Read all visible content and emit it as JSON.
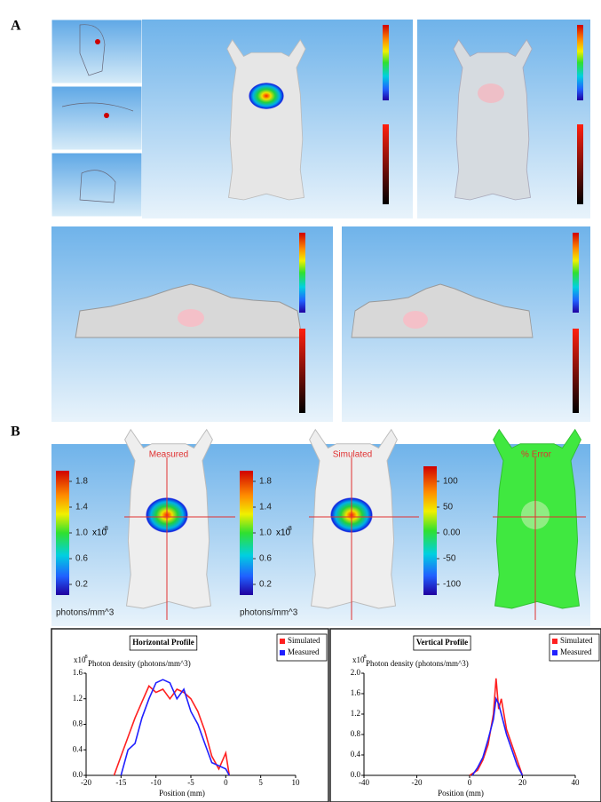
{
  "panel_labels": [
    "A",
    "B"
  ],
  "panel_b": {
    "titles": [
      "Measured",
      "Simulated",
      "% Error"
    ],
    "colorbars": [
      {
        "ticks": [
          "1.8",
          "1.4",
          "1.0",
          "0.6",
          "0.2"
        ],
        "scale": {
          "base": "x10",
          "exponent": "-8"
        },
        "unit": "photons/mm^3"
      },
      {
        "ticks": [
          "1.8",
          "1.4",
          "1.0",
          "0.6",
          "0.2"
        ],
        "scale": {
          "base": "x10",
          "exponent": "-8"
        },
        "unit": "photons/mm^3"
      },
      {
        "ticks": [
          "100",
          "50",
          "0.00",
          "-50",
          "-100"
        ]
      }
    ]
  },
  "chart_data": [
    {
      "type": "line",
      "title": "Horizontal Profile",
      "y_label": "Photon density (photons/mm^3)",
      "y_scale": {
        "base": "x10",
        "exponent": "-8"
      },
      "x_label": "Position (mm)",
      "xlim": [
        -20,
        10
      ],
      "xticks": [
        -20,
        -15,
        -10,
        -5,
        0,
        5,
        10
      ],
      "ylim": [
        0,
        1.6
      ],
      "yticks": [
        {
          "value": 0,
          "label": "0.0"
        },
        0.4,
        0.8,
        1.2,
        1.6
      ],
      "legend": "top-right",
      "series": [
        {
          "name": "Simulated",
          "color": "#ff2020",
          "x": [
            -16,
            -15,
            -14,
            -13,
            -12,
            -11,
            -10,
            -9,
            -8,
            -7,
            -6,
            -5,
            -4,
            -3,
            -2,
            -1,
            0,
            0.5
          ],
          "values": [
            0,
            0.3,
            0.6,
            0.9,
            1.15,
            1.4,
            1.3,
            1.35,
            1.2,
            1.35,
            1.3,
            1.2,
            1.0,
            0.7,
            0.3,
            0.1,
            0.35,
            0
          ]
        },
        {
          "name": "Measured",
          "color": "#2020ff",
          "x": [
            -15,
            -14,
            -13,
            -12,
            -11,
            -10,
            -9,
            -8,
            -7,
            -6,
            -5,
            -4,
            -3,
            -2,
            -1,
            0,
            0.5
          ],
          "values": [
            0,
            0.4,
            0.5,
            0.9,
            1.2,
            1.45,
            1.5,
            1.45,
            1.2,
            1.35,
            1.0,
            0.8,
            0.5,
            0.2,
            0.15,
            0.1,
            0
          ]
        }
      ]
    },
    {
      "type": "line",
      "title": "Vertical Profile",
      "y_label": "Photon density (photons/mm^3)",
      "y_scale": {
        "base": "x10",
        "exponent": "-8"
      },
      "x_label": "Position (mm)",
      "xlim": [
        -40,
        40
      ],
      "xticks": [
        -40,
        -20,
        0,
        20,
        40
      ],
      "ylim": [
        0,
        2
      ],
      "yticks": [
        {
          "value": 0,
          "label": "0.0"
        },
        0.4,
        0.8,
        1.2,
        1.6,
        {
          "value": 2,
          "label": "2.0"
        }
      ],
      "legend": "top-right",
      "series": [
        {
          "name": "Simulated",
          "color": "#ff2020",
          "x": [
            0,
            3,
            5,
            7,
            9,
            10,
            11,
            12,
            14,
            16,
            18,
            20
          ],
          "values": [
            0,
            0.1,
            0.3,
            0.6,
            1.2,
            1.9,
            1.3,
            1.5,
            0.9,
            0.6,
            0.3,
            0
          ]
        },
        {
          "name": "Measured",
          "color": "#2020ff",
          "x": [
            1,
            3,
            5,
            7,
            9,
            10,
            11,
            12,
            14,
            16,
            18,
            20
          ],
          "values": [
            0,
            0.15,
            0.35,
            0.7,
            1.1,
            1.5,
            1.4,
            1.2,
            0.8,
            0.5,
            0.2,
            0
          ]
        }
      ]
    }
  ]
}
